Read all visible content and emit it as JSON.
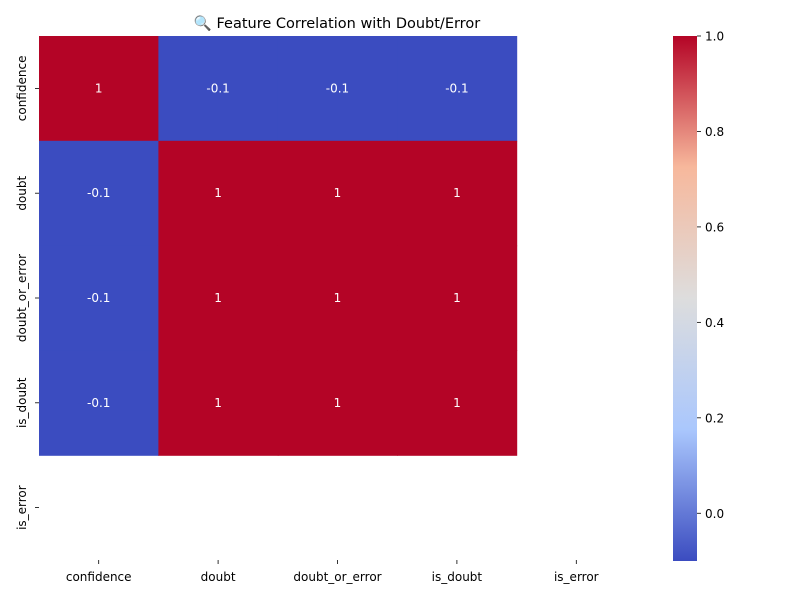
{
  "chart_data": {
    "type": "heatmap",
    "title": "🔍 Feature Correlation with Doubt/Error",
    "x_categories": [
      "confidence",
      "doubt",
      "doubt_or_error",
      "is_doubt",
      "is_error"
    ],
    "y_categories": [
      "confidence",
      "doubt",
      "doubt_or_error",
      "is_doubt",
      "is_error"
    ],
    "values": [
      [
        1,
        -0.1,
        -0.1,
        -0.1,
        null
      ],
      [
        -0.1,
        1,
        1,
        1,
        null
      ],
      [
        -0.1,
        1,
        1,
        1,
        null
      ],
      [
        -0.1,
        1,
        1,
        1,
        null
      ],
      [
        null,
        null,
        null,
        null,
        null
      ]
    ],
    "annotations": [
      [
        "1",
        "-0.1",
        "-0.1",
        "-0.1",
        ""
      ],
      [
        "-0.1",
        "1",
        "1",
        "1",
        ""
      ],
      [
        "-0.1",
        "1",
        "1",
        "1",
        ""
      ],
      [
        "-0.1",
        "1",
        "1",
        "1",
        ""
      ],
      [
        "",
        "",
        "",
        "",
        ""
      ]
    ],
    "colormap": "coolwarm",
    "colormap_stops": [
      "#3b4cc0",
      "#aac7fd",
      "#dddddd",
      "#f7b89c",
      "#b40426"
    ],
    "colorbar": {
      "range": [
        -0.1,
        1.0
      ],
      "ticks": [
        0.0,
        0.2,
        0.4,
        0.6,
        0.8,
        1.0
      ],
      "tick_labels": [
        "0.0",
        "0.2",
        "0.4",
        "0.6",
        "0.8",
        "1.0"
      ]
    },
    "annotation_color": "#ffffff",
    "grid": false
  }
}
